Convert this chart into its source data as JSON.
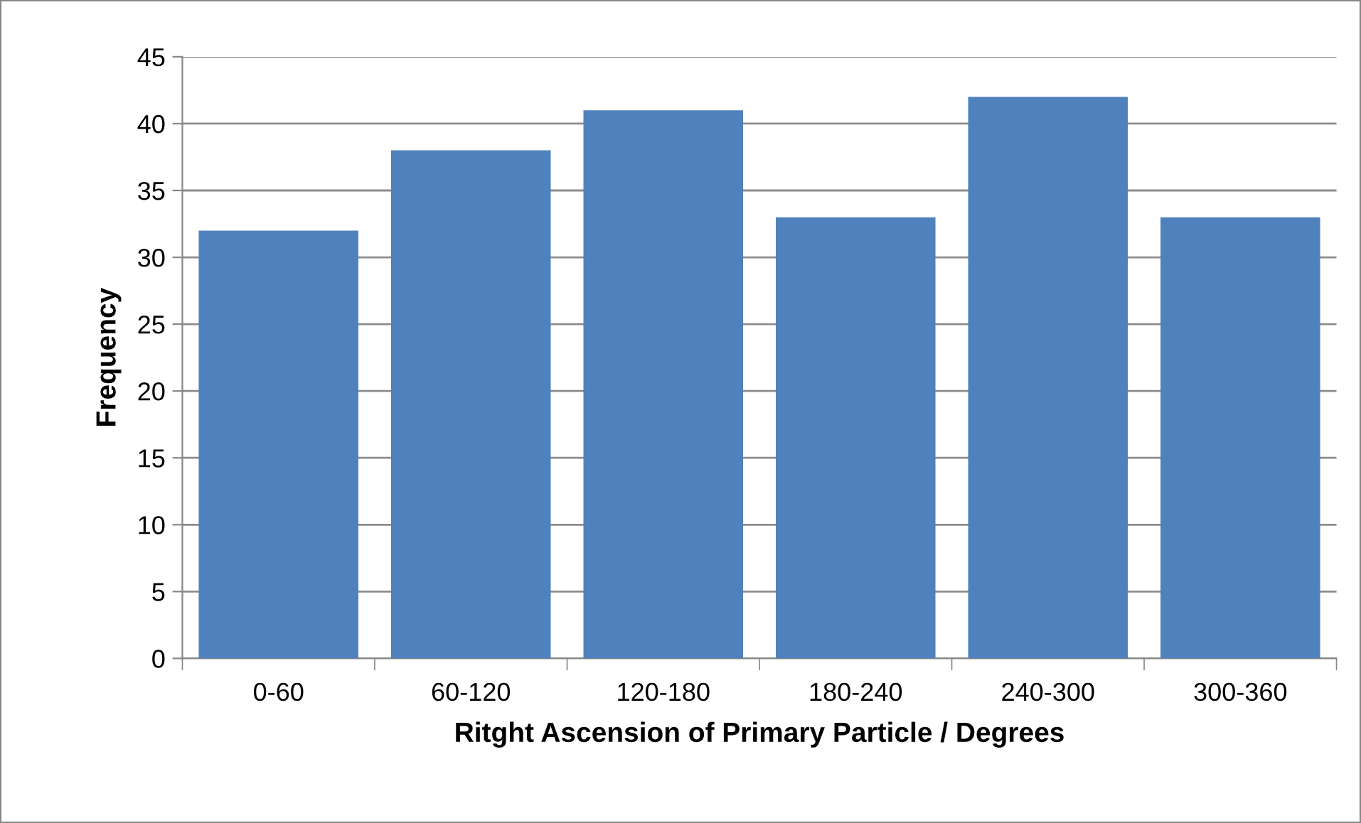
{
  "chart_data": {
    "type": "bar",
    "xlabel": "Ritght Ascension of Primary Particle / Degrees",
    "ylabel": "Frequency",
    "categories": [
      "0-60",
      "60-120",
      "120-180",
      "180-240",
      "240-300",
      "300-360"
    ],
    "values": [
      32,
      38,
      41,
      33,
      42,
      33
    ],
    "color": "#4f81bd",
    "ylim": [
      0,
      45
    ],
    "yticks": [
      0,
      5,
      10,
      15,
      20,
      25,
      30,
      35,
      40,
      45
    ],
    "grid": "y",
    "legend": false
  }
}
